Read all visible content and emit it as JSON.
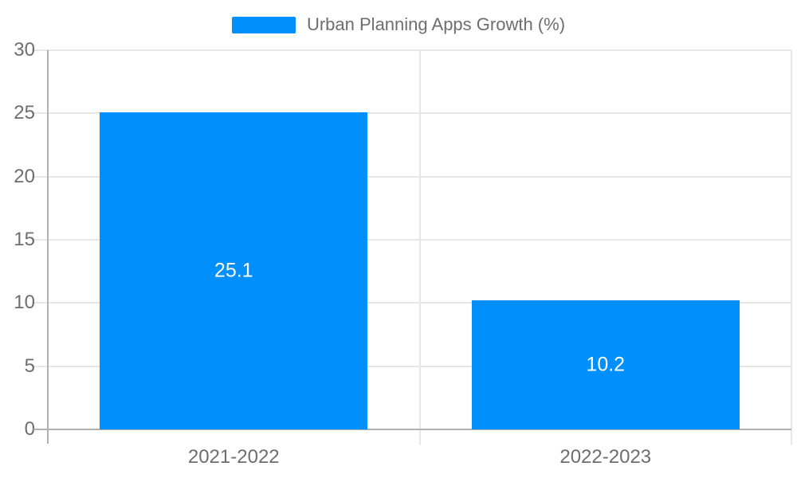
{
  "chart_data": {
    "type": "bar",
    "categories": [
      "2021-2022",
      "2022-2023"
    ],
    "values": [
      25.1,
      10.2
    ],
    "data_labels": [
      "25.1",
      "10.2"
    ],
    "legend": [
      "Urban Planning Apps Growth (%)"
    ],
    "legend_position": "top",
    "xlabel": "",
    "ylabel": "",
    "ylim": [
      0,
      30
    ],
    "ytick_step": 5,
    "ytick_labels": [
      "0",
      "5",
      "10",
      "15",
      "20",
      "25",
      "30"
    ],
    "grid": true,
    "colors": {
      "bar": "#008FFB",
      "grid": "#e7e7e7",
      "axis": "#b1b1b1",
      "tick_label": "#6e6e6e",
      "data_label": "#ffffff"
    }
  }
}
